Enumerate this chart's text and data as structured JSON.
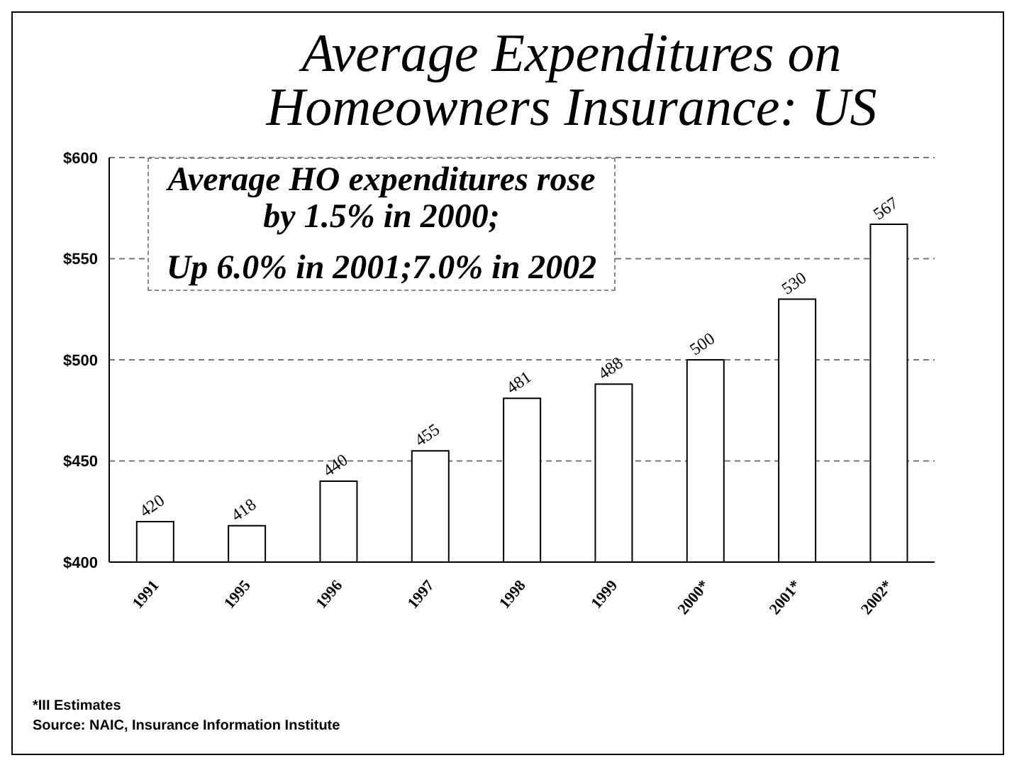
{
  "chart_data": {
    "type": "bar",
    "title": "Average Expenditures on Homeowners Insurance: US",
    "categories": [
      "1991",
      "1995",
      "1996",
      "1997",
      "1998",
      "1999",
      "2000*",
      "2001*",
      "2002*"
    ],
    "values": [
      420,
      418,
      440,
      455,
      481,
      488,
      500,
      530,
      567
    ],
    "color": "#ffffff",
    "ylim": [
      400,
      600
    ],
    "yticks": [
      {
        "value": 400,
        "label": "$400"
      },
      {
        "value": 450,
        "label": "$450"
      },
      {
        "value": 500,
        "label": "$500"
      },
      {
        "value": 550,
        "label": "$550"
      },
      {
        "value": 600,
        "label": "$600"
      }
    ],
    "grid": "y",
    "data_labels": true,
    "legend": false,
    "annotations": [
      "Average HO expenditures rose by 1.5% in 2000;",
      "Up 6.0% in 2001;7.0% in 2002",
      "*III Estimates",
      "Source:  NAIC, Insurance Information Institute"
    ]
  }
}
